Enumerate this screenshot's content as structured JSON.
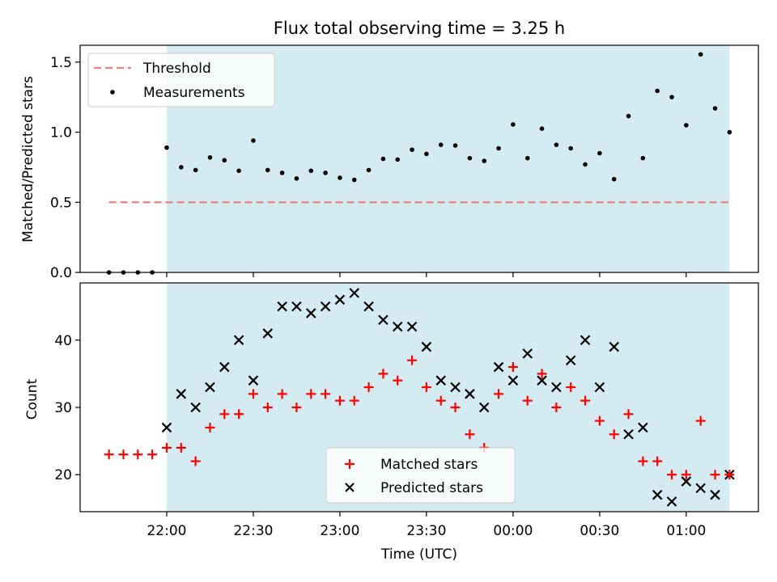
{
  "chart_data": [
    {
      "type": "scatter",
      "title": "Flux total observing time = 3.25 h",
      "ylabel": "Matched/Predicted stars",
      "xlabel": "",
      "ylim": [
        0,
        1.62
      ],
      "yticks": [
        "0.0",
        "0.5",
        "1.0",
        "1.5"
      ],
      "ytick_values": [
        0,
        0.5,
        1.0,
        1.5
      ],
      "shaded_region_color": "#d4ebf1",
      "threshold": {
        "name": "Threshold",
        "value": 0.5,
        "x_start": "21:40",
        "x_end": "01:15",
        "color": "#f08080"
      },
      "legend_position": "upper-left",
      "series": [
        {
          "name": "Measurements",
          "color": "#000000",
          "x": [
            "21:40",
            "21:45",
            "21:50",
            "21:55",
            "22:00",
            "22:05",
            "22:10",
            "22:15",
            "22:20",
            "22:25",
            "22:30",
            "22:35",
            "22:40",
            "22:45",
            "22:50",
            "22:55",
            "23:00",
            "23:05",
            "23:10",
            "23:15",
            "23:20",
            "23:25",
            "23:30",
            "23:35",
            "23:40",
            "23:45",
            "23:50",
            "23:55",
            "00:00",
            "00:05",
            "00:10",
            "00:15",
            "00:20",
            "00:25",
            "00:30",
            "00:35",
            "00:40",
            "00:45",
            "00:50",
            "00:55",
            "01:00",
            "01:05",
            "01:10",
            "01:15"
          ],
          "y": [
            0,
            0,
            0,
            0,
            0.89,
            0.75,
            0.73,
            0.82,
            0.8,
            0.725,
            0.94,
            0.73,
            0.71,
            0.67,
            0.725,
            0.71,
            0.675,
            0.66,
            0.73,
            0.81,
            0.805,
            0.875,
            0.845,
            0.91,
            0.905,
            0.815,
            0.795,
            0.885,
            1.055,
            0.815,
            1.025,
            0.91,
            0.885,
            0.77,
            0.85,
            0.665,
            1.115,
            0.815,
            1.295,
            1.25,
            1.05,
            1.555,
            1.17,
            1.0
          ]
        }
      ]
    },
    {
      "type": "scatter",
      "title": "",
      "ylabel": "Count",
      "xlabel": "Time (UTC)",
      "ylim": [
        14.5,
        48.5
      ],
      "yticks": [
        "20",
        "30",
        "40"
      ],
      "ytick_values": [
        20,
        30,
        40
      ],
      "x_range": [
        "21:30",
        "01:25"
      ],
      "xticks": [
        "22:00",
        "22:30",
        "23:00",
        "23:30",
        "00:00",
        "00:30",
        "01:00"
      ],
      "shaded_region": [
        "22:00",
        "01:15"
      ],
      "legend_position": "lower-center",
      "x": [
        "21:40",
        "21:45",
        "21:50",
        "21:55",
        "22:00",
        "22:05",
        "22:10",
        "22:15",
        "22:20",
        "22:25",
        "22:30",
        "22:35",
        "22:40",
        "22:45",
        "22:50",
        "22:55",
        "23:00",
        "23:05",
        "23:10",
        "23:15",
        "23:20",
        "23:25",
        "23:30",
        "23:35",
        "23:40",
        "23:45",
        "23:50",
        "23:55",
        "00:00",
        "00:05",
        "00:10",
        "00:15",
        "00:20",
        "00:25",
        "00:30",
        "00:35",
        "00:40",
        "00:45",
        "00:50",
        "00:55",
        "01:00",
        "01:05",
        "01:10",
        "01:15"
      ],
      "series": [
        {
          "name": "Matched stars",
          "color": "#ff0000",
          "marker": "plus",
          "values": [
            23,
            23,
            23,
            23,
            24,
            24,
            22,
            27,
            29,
            29,
            32,
            30,
            32,
            30,
            32,
            32,
            31,
            31,
            33,
            35,
            34,
            37,
            33,
            31,
            30,
            26,
            24,
            32,
            36,
            31,
            35,
            30,
            33,
            31,
            28,
            26,
            29,
            22,
            22,
            20,
            20,
            28,
            20,
            20
          ]
        },
        {
          "name": "Predicted stars",
          "color": "#000000",
          "marker": "x",
          "values": [
            null,
            null,
            null,
            null,
            27,
            32,
            30,
            33,
            36,
            40,
            34,
            41,
            45,
            45,
            44,
            45,
            46,
            47,
            45,
            43,
            42,
            42,
            39,
            34,
            33,
            32,
            30,
            36,
            34,
            38,
            34,
            33,
            37,
            40,
            33,
            39,
            26,
            27,
            17,
            16,
            19,
            18,
            17,
            20
          ]
        }
      ]
    }
  ]
}
